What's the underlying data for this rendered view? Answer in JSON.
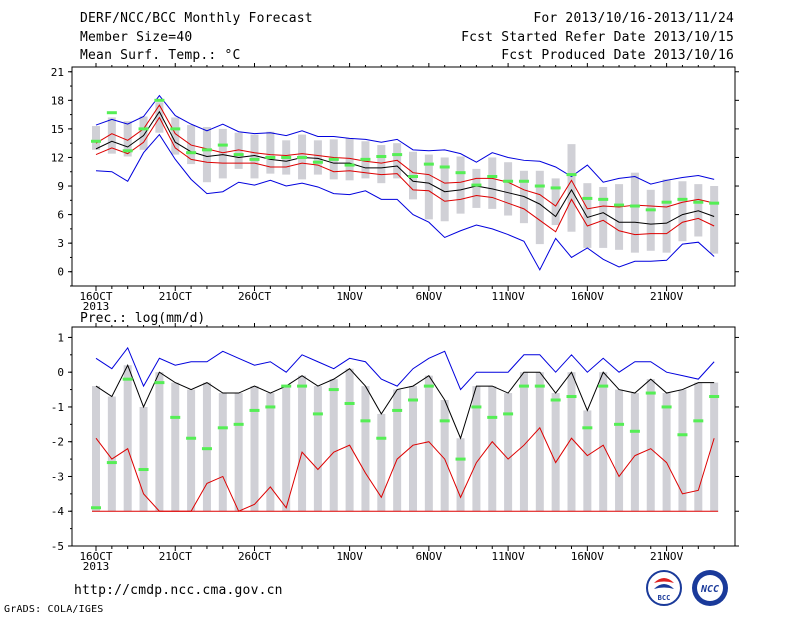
{
  "header": {
    "title": "DERF/NCC/BCC Monthly Forecast",
    "member_size": "Member Size=40",
    "variable": "Mean Surf. Temp.: °C",
    "period": "For 2013/10/16-2013/11/24",
    "start": "Fcst Started Refer Date 2013/10/15",
    "produced": "Fcst Produced Date 2013/10/16"
  },
  "footer": {
    "url": "http://cmdp.ncc.cma.gov.cn",
    "credit": "GrADS: COLA/IGES",
    "logo_left": "BCC",
    "logo_right": "NCC"
  },
  "colors": {
    "bar": "#d0d0d6",
    "observed": "#55ee55",
    "upper": "#0000dd",
    "mean": "#000000",
    "lower": "#dd0000"
  },
  "chart_data": [
    {
      "type": "line",
      "title": "Mean Surf. Temp.: °C",
      "x": [
        "16OCT",
        "17OCT",
        "18OCT",
        "19OCT",
        "20OCT",
        "21OCT",
        "22OCT",
        "23OCT",
        "24OCT",
        "25OCT",
        "26OCT",
        "27OCT",
        "28OCT",
        "29OCT",
        "30OCT",
        "31OCT",
        "1NOV",
        "2NOV",
        "3NOV",
        "4NOV",
        "5NOV",
        "6NOV",
        "7NOV",
        "8NOV",
        "9NOV",
        "10NOV",
        "11NOV",
        "12NOV",
        "13NOV",
        "14NOV",
        "15NOV",
        "16NOV",
        "17NOV",
        "18NOV",
        "19NOV",
        "20NOV",
        "21NOV",
        "22NOV",
        "23NOV",
        "24NOV"
      ],
      "xticks": [
        "16OCT",
        "21OCT",
        "26OCT",
        "1NOV",
        "6NOV",
        "11NOV",
        "16NOV",
        "21NOV"
      ],
      "xtick_index": [
        0,
        5,
        10,
        16,
        21,
        26,
        31,
        36
      ],
      "year_label": "2013",
      "ylim": [
        -1.5,
        21.5
      ],
      "yticks": [
        0,
        3,
        6,
        9,
        12,
        15,
        18,
        21
      ],
      "series": [
        {
          "values": [
            15.4,
            16.0,
            15.5,
            16.3,
            18.5,
            16.4,
            15.5,
            14.8,
            15.5,
            14.7,
            14.5,
            14.6,
            14.3,
            14.8,
            14.2,
            14.2,
            14.0,
            13.9,
            13.6,
            13.9,
            12.8,
            12.7,
            12.8,
            12.4,
            11.5,
            12.5,
            12.0,
            11.7,
            11.6,
            11.0,
            10.0,
            11.2,
            9.4,
            9.8,
            10.0,
            9.2,
            9.6,
            9.9,
            10.1,
            9.7
          ]
        },
        {
          "values": [
            13.5,
            14.5,
            13.8,
            15.0,
            17.5,
            14.5,
            13.3,
            12.9,
            12.5,
            12.8,
            12.5,
            12.3,
            12.2,
            12.4,
            12.2,
            12.0,
            11.9,
            11.6,
            11.4,
            11.7,
            10.4,
            10.2,
            9.3,
            9.4,
            9.8,
            9.8,
            9.4,
            8.6,
            8.1,
            6.9,
            9.6,
            6.6,
            6.9,
            6.8,
            7.0,
            6.9,
            6.8,
            7.3,
            7.6,
            7.2
          ]
        },
        {
          "values": [
            12.9,
            13.7,
            13.1,
            14.3,
            16.8,
            13.6,
            12.6,
            12.1,
            12.3,
            12.0,
            12.2,
            11.8,
            11.6,
            12.0,
            11.9,
            11.4,
            11.4,
            10.9,
            10.9,
            11.1,
            9.5,
            9.3,
            8.4,
            8.6,
            9.0,
            8.7,
            8.3,
            7.9,
            7.1,
            5.8,
            8.6,
            5.7,
            6.2,
            5.2,
            5.2,
            5.0,
            5.1,
            6.0,
            6.4,
            5.8
          ]
        },
        {
          "values": [
            12.3,
            13.0,
            12.4,
            13.6,
            16.2,
            13.0,
            11.8,
            11.5,
            11.4,
            11.4,
            11.4,
            11.0,
            11.0,
            11.4,
            11.2,
            10.5,
            10.6,
            10.4,
            10.2,
            10.3,
            8.6,
            8.5,
            7.4,
            7.6,
            8.0,
            7.8,
            7.2,
            6.6,
            5.4,
            4.2,
            7.6,
            4.8,
            5.4,
            4.3,
            3.9,
            4.0,
            4.0,
            5.2,
            5.6,
            4.8
          ]
        },
        {
          "values": [
            10.6,
            10.5,
            9.5,
            12.5,
            14.4,
            11.8,
            9.7,
            8.2,
            8.4,
            9.4,
            9.1,
            9.6,
            9.0,
            9.3,
            8.9,
            8.2,
            8.1,
            8.5,
            7.6,
            7.6,
            6.0,
            5.2,
            3.6,
            4.3,
            4.9,
            4.5,
            3.9,
            3.2,
            0.2,
            3.5,
            1.5,
            2.5,
            1.3,
            0.5,
            1.1,
            1.1,
            1.2,
            2.9,
            3.1,
            1.6
          ]
        },
        {
          "values": [
            13.7,
            16.7,
            12.7,
            15.0,
            18.0,
            15.0,
            12.5,
            12.8,
            13.3,
            12.3,
            11.8,
            12.0,
            12.0,
            12.0,
            11.5,
            11.8,
            11.2,
            11.8,
            12.1,
            12.3,
            10.0,
            11.3,
            11.0,
            10.4,
            9.1,
            10.0,
            9.5,
            9.5,
            9.0,
            8.8,
            10.2,
            7.7,
            7.6,
            7.0,
            6.9,
            6.5,
            7.3,
            7.6,
            7.3,
            7.2
          ]
        },
        {
          "values": [
            15.3,
            16.2,
            15.8,
            16.3,
            17.8,
            16.2,
            15.4,
            15.2,
            15.0,
            14.6,
            14.4,
            14.7,
            13.8,
            14.4,
            13.8,
            13.9,
            14.0,
            13.7,
            13.3,
            13.5,
            12.6,
            12.3,
            12.0,
            12.1,
            10.8,
            12.0,
            11.5,
            10.6,
            10.6,
            9.8,
            13.4,
            9.3,
            8.9,
            9.2,
            10.4,
            8.6,
            9.7,
            9.5,
            9.2,
            9.0
          ]
        },
        {
          "values": [
            12.8,
            12.4,
            12.1,
            12.8,
            14.6,
            12.3,
            11.3,
            9.4,
            9.8,
            10.8,
            9.8,
            10.3,
            10.2,
            9.7,
            10.2,
            9.7,
            9.6,
            9.8,
            9.3,
            9.8,
            7.6,
            5.5,
            5.3,
            6.1,
            6.7,
            6.6,
            5.9,
            5.1,
            2.9,
            4.9,
            4.2,
            2.5,
            2.5,
            2.3,
            2.0,
            2.2,
            2.0,
            3.2,
            3.7,
            1.9
          ]
        }
      ]
    },
    {
      "type": "line",
      "title": "Prec.: log(mm/d)",
      "x": [
        "16OCT",
        "17OCT",
        "18OCT",
        "19OCT",
        "20OCT",
        "21OCT",
        "22OCT",
        "23OCT",
        "24OCT",
        "25OCT",
        "26OCT",
        "27OCT",
        "28OCT",
        "29OCT",
        "30OCT",
        "31OCT",
        "1NOV",
        "2NOV",
        "3NOV",
        "4NOV",
        "5NOV",
        "6NOV",
        "7NOV",
        "8NOV",
        "9NOV",
        "10NOV",
        "11NOV",
        "12NOV",
        "13NOV",
        "14NOV",
        "15NOV",
        "16NOV",
        "17NOV",
        "18NOV",
        "19NOV",
        "20NOV",
        "21NOV",
        "22NOV",
        "23NOV",
        "24NOV"
      ],
      "xticks": [
        "16OCT",
        "21OCT",
        "26OCT",
        "1NOV",
        "6NOV",
        "11NOV",
        "16NOV",
        "21NOV"
      ],
      "xtick_index": [
        0,
        5,
        10,
        16,
        21,
        26,
        31,
        36
      ],
      "year_label": "2013",
      "ylim": [
        -5,
        1.3
      ],
      "yticks": [
        -5,
        -4,
        -3,
        -2,
        -1,
        0,
        1
      ],
      "series": [
        {
          "values": [
            0.4,
            0.1,
            0.7,
            -0.4,
            0.4,
            0.2,
            0.3,
            0.3,
            0.6,
            0.4,
            0.2,
            0.3,
            0.0,
            0.5,
            0.3,
            0.1,
            0.4,
            0.3,
            -0.2,
            -0.4,
            0.1,
            0.4,
            0.6,
            -0.5,
            0.0,
            0.0,
            0.0,
            0.5,
            0.5,
            0.0,
            0.5,
            0.0,
            0.4,
            0.0,
            0.3,
            0.3,
            0.0,
            -0.1,
            -0.2,
            0.3
          ]
        },
        {
          "values": [
            -0.4,
            -0.7,
            0.2,
            -1.0,
            0.0,
            -0.3,
            -0.5,
            -0.3,
            -0.6,
            -0.6,
            -0.4,
            -0.6,
            -0.4,
            -0.1,
            -0.4,
            -0.2,
            0.1,
            -0.4,
            -1.2,
            -0.5,
            -0.4,
            -0.1,
            -0.8,
            -1.9,
            -0.4,
            -0.4,
            -0.6,
            0.0,
            0.0,
            -0.6,
            0.0,
            -1.1,
            0.0,
            -0.5,
            -0.6,
            -0.2,
            -0.6,
            -0.5,
            -0.3,
            -0.3
          ]
        },
        {
          "values": [
            -0.7,
            -1.0,
            0.3,
            -1.5,
            -0.3,
            -0.6,
            -0.8,
            -0.7,
            -0.9,
            -0.9,
            -0.7,
            -0.6,
            -0.3,
            -0.2,
            -0.8,
            -0.2,
            -0.4,
            -0.6,
            -1.4,
            -0.6,
            -0.4,
            -0.2,
            -0.9,
            -2.1,
            -0.6,
            -0.7,
            -0.8,
            -0.3,
            -0.3,
            -0.8,
            -0.3,
            -1.3,
            -0.2,
            -0.7,
            -0.9,
            -0.5,
            -1.0,
            -1.2,
            -0.9,
            -0.5
          ]
        },
        {
          "values": [
            -1.9,
            -2.5,
            -2.2,
            -3.5,
            -4.0,
            -4.0,
            -4.0,
            -3.2,
            -3.0,
            -4.0,
            -3.8,
            -3.3,
            -3.9,
            -2.3,
            -2.8,
            -2.3,
            -2.1,
            -2.9,
            -3.6,
            -2.5,
            -2.1,
            -2.0,
            -2.5,
            -3.6,
            -2.6,
            -2.0,
            -2.5,
            -2.1,
            -1.6,
            -2.6,
            -1.9,
            -2.4,
            -2.1,
            -3.0,
            -2.4,
            -2.2,
            -2.6,
            -3.5,
            -3.4,
            -1.9
          ]
        },
        {
          "values": [
            -3.9,
            -2.6,
            -0.2,
            -2.8,
            -0.3,
            -1.3,
            -1.9,
            -2.2,
            -1.6,
            -1.5,
            -1.1,
            -1.0,
            -0.4,
            -0.4,
            -1.2,
            -0.5,
            -0.9,
            -1.4,
            -1.9,
            -1.1,
            -0.8,
            -0.4,
            -1.4,
            -2.5,
            -1.0,
            -1.3,
            -1.2,
            -0.4,
            -0.4,
            -0.8,
            -0.7,
            -1.6,
            -0.4,
            -1.5,
            -1.7,
            -0.6,
            -1.0,
            -1.8,
            -1.4,
            -0.7
          ]
        }
      ]
    }
  ]
}
